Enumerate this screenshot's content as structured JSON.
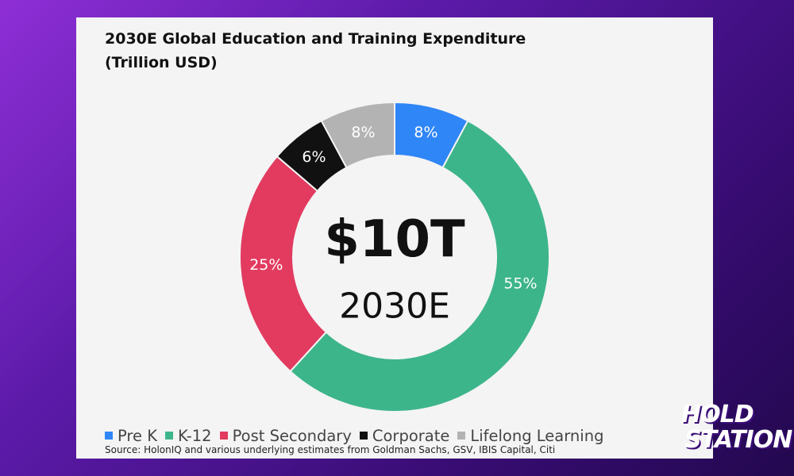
{
  "chart_data": {
    "type": "pie",
    "title": "2030E Global Education and Training Expenditure",
    "subtitle": "(Trillion USD)",
    "center_value": "$10T",
    "center_label": "2030E",
    "slices": [
      {
        "label": "Pre K",
        "value": 8,
        "display": "8%",
        "color": "#2f86f6"
      },
      {
        "label": "K-12",
        "value": 55,
        "display": "55%",
        "color": "#3db58a"
      },
      {
        "label": "Post Secondary",
        "value": 25,
        "display": "25%",
        "color": "#e23b5f"
      },
      {
        "label": "Corporate",
        "value": 6,
        "display": "6%",
        "color": "#111111"
      },
      {
        "label": "Lifelong Learning",
        "value": 8,
        "display": "8%",
        "color": "#b3b3b3"
      }
    ],
    "legend_position": "bottom",
    "source": "Source: HolonIQ and various underlying estimates from Goldman Sachs, GSV, IBIS Capital, Citi"
  },
  "logo": {
    "line1": "HOLD",
    "line2": "STATION"
  }
}
